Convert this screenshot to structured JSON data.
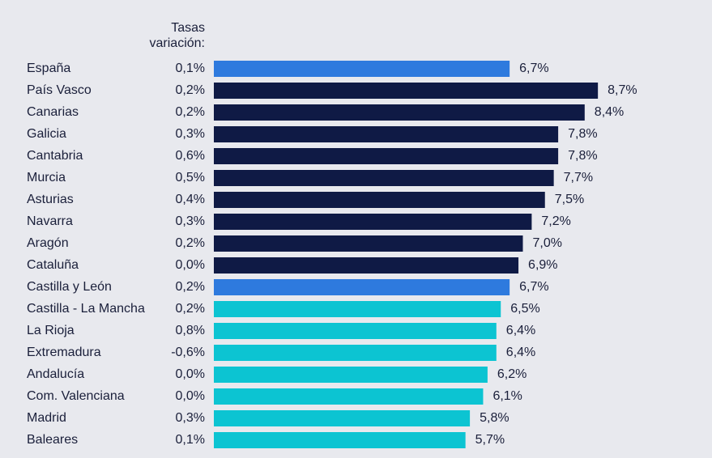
{
  "chart_data": {
    "type": "bar",
    "orientation": "horizontal",
    "categories": [
      "España",
      "País Vasco",
      "Canarias",
      "Galicia",
      "Cantabria",
      "Murcia",
      "Asturias",
      "Navarra",
      "Aragón",
      "Cataluña",
      "Castilla y León",
      "Castilla - La Mancha",
      "La Rioja",
      "Extremadura",
      "Andalucía",
      "Com. Valenciana",
      "Madrid",
      "Baleares"
    ],
    "values": [
      6.7,
      8.7,
      8.4,
      7.8,
      7.8,
      7.7,
      7.5,
      7.2,
      7.0,
      6.9,
      6.7,
      6.5,
      6.4,
      6.4,
      6.2,
      6.1,
      5.8,
      5.7
    ],
    "value_labels": [
      "6,7%",
      "8,7%",
      "8,4%",
      "7,8%",
      "7,8%",
      "7,7%",
      "7,5%",
      "7,2%",
      "7,0%",
      "6,9%",
      "6,7%",
      "6,5%",
      "6,4%",
      "6,4%",
      "6,2%",
      "6,1%",
      "5,8%",
      "5,7%"
    ],
    "colors": [
      "#2e7ade",
      "#0f1a45",
      "#0f1a45",
      "#0f1a45",
      "#0f1a45",
      "#0f1a45",
      "#0f1a45",
      "#0f1a45",
      "#0f1a45",
      "#0f1a45",
      "#2e7ade",
      "#0cc4d2",
      "#0cc4d2",
      "#0cc4d2",
      "#0cc4d2",
      "#0cc4d2",
      "#0cc4d2",
      "#0cc4d2"
    ],
    "xlim": [
      0,
      10
    ],
    "rates_title": [
      "Tasas",
      "variación:"
    ],
    "rates": {
      "values": [
        0.1,
        0.2,
        0.2,
        0.3,
        0.6,
        0.5,
        0.4,
        0.3,
        0.2,
        0.0,
        0.2,
        0.2,
        0.8,
        -0.6,
        0.0,
        0.0,
        0.3,
        0.1
      ],
      "value_labels": [
        "0,1%",
        "0,2%",
        "0,2%",
        "0,3%",
        "0,6%",
        "0,5%",
        "0,4%",
        "0,3%",
        "0,2%",
        "0,0%",
        "0,2%",
        "0,2%",
        "0,8%",
        "-0,6%",
        "0,0%",
        "0,0%",
        "0,3%",
        "0,1%"
      ]
    }
  }
}
